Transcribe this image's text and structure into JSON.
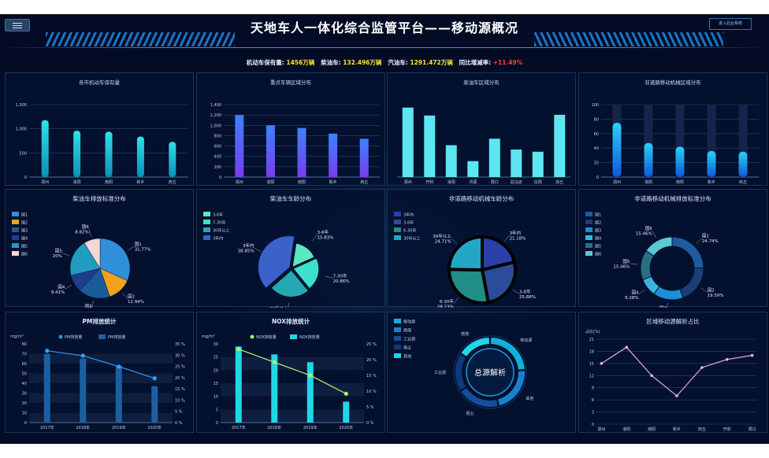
{
  "header": {
    "title": "天地车人一体化综合监管平台——移动源概况",
    "enter_label": "进入后台系统"
  },
  "stats": {
    "motor_label": "机动车保有量:",
    "motor_value": "1456万辆",
    "diesel_label": "柴油车:",
    "diesel_value": "132.496万辆",
    "gas_label": "汽油车:",
    "gas_value": "1291.472万辆",
    "growth_label": "同比增减率:",
    "growth_value": "+11.49%"
  },
  "colors": {
    "background": "#030c24",
    "accent": "#2d8ff0",
    "cyan": "#22c3d6",
    "yellow": "#f4e23a",
    "red": "#ff3d3d"
  },
  "chart_data": [
    {
      "id": "c1",
      "type": "bar",
      "title": "各市机动车保有量",
      "categories": [
        "郑州",
        "洛阳",
        "南阳",
        "新乡",
        "商丘"
      ],
      "values": [
        1180,
        960,
        940,
        840,
        730
      ],
      "ylim": [
        0,
        1500
      ],
      "yticks": [
        "0",
        "500",
        "1,000",
        "1,500"
      ],
      "color": "cyan-gradient"
    },
    {
      "id": "c2",
      "type": "bar",
      "title": "重点车辆区域分布",
      "categories": [
        "郑州",
        "洛阳",
        "南阳",
        "新乡",
        "商丘"
      ],
      "values": [
        1200,
        1000,
        950,
        840,
        740
      ],
      "ylim": [
        0,
        1400
      ],
      "yticks": [
        "0",
        "200",
        "400",
        "600",
        "800",
        "1,000",
        "1,200",
        "1,400"
      ],
      "color": "blue-purple-gradient"
    },
    {
      "id": "c3",
      "type": "bar",
      "title": "柴油车区域分布",
      "categories": [
        "郑州",
        "开封",
        "洛阳",
        "济源",
        "周口",
        "驻马店",
        "信阳",
        "商丘"
      ],
      "values": [
        96,
        85,
        44,
        22,
        53,
        38,
        35,
        86
      ],
      "ylim": [
        0,
        100
      ],
      "yticks": []
    },
    {
      "id": "c4",
      "type": "bar",
      "title": "非道路移动机械区域分布",
      "categories": [
        "郑州",
        "洛阳",
        "南阳",
        "新乡",
        "商丘"
      ],
      "values": [
        75,
        47,
        42,
        36,
        35
      ],
      "ylim": [
        0,
        100
      ],
      "yticks": [
        "0",
        "20",
        "40",
        "60",
        "80",
        "100"
      ]
    },
    {
      "id": "c5",
      "type": "pie",
      "title": "柴油车排放标准分布",
      "legend": [
        "国1",
        "国2",
        "国3",
        "国4",
        "国5",
        "国6"
      ],
      "slices": [
        {
          "name": "国1",
          "pct": 31.77
        },
        {
          "name": "国2",
          "pct": 12.94
        },
        {
          "name": "国3",
          "pct": 17.06
        },
        {
          "name": "国4",
          "pct": 9.41
        },
        {
          "name": "国5",
          "pct": 20.0
        },
        {
          "name": "国6",
          "pct": 8.82
        }
      ],
      "labels": [
        [
          "国1",
          "31.77%"
        ],
        [
          "国2",
          "12.94%"
        ],
        [
          "国3",
          "17.06%"
        ],
        [
          "国4",
          "9.41%"
        ],
        [
          "国5",
          "20%"
        ],
        [
          "国6",
          "8.82%"
        ]
      ]
    },
    {
      "id": "c6",
      "type": "pie",
      "title": "柴油车车龄分布",
      "legend": [
        "3-6年",
        "7-30年",
        "30年以上",
        "3年内"
      ],
      "slices": [
        {
          "name": "3-6年",
          "pct": 15.83
        },
        {
          "name": "7-30年",
          "pct": 20.86
        },
        {
          "name": "30年以上",
          "pct": 24.46
        },
        {
          "name": "3年内",
          "pct": 38.85
        }
      ],
      "labels": [
        [
          "3-6年",
          "15.83%"
        ],
        [
          "7-30年",
          "20.86%"
        ],
        [
          "30年以上",
          "24.46%"
        ],
        [
          "3年内",
          "38.85%"
        ]
      ]
    },
    {
      "id": "c7",
      "type": "pie",
      "title": "非道路移动机械车龄分布",
      "legend": [
        "3年内",
        "3-6年",
        "6-30年",
        "30年以上"
      ],
      "slices": [
        {
          "name": "3年内",
          "pct": 21.18
        },
        {
          "name": "3-6年",
          "pct": 25.88
        },
        {
          "name": "6-30年",
          "pct": 28.23
        },
        {
          "name": "30年以上",
          "pct": 24.71
        }
      ],
      "labels": [
        [
          "3年内",
          "21.18%"
        ],
        [
          "3-6年",
          "25.88%"
        ],
        [
          "6-30年",
          "28.23%"
        ],
        [
          "30年以上",
          "24.71%"
        ]
      ]
    },
    {
      "id": "c8",
      "type": "pie",
      "title": "非道路移动机械排放标准分布",
      "legend": [
        "国1",
        "国2",
        "国3",
        "国4",
        "国5",
        "国6"
      ],
      "slices": [
        {
          "name": "国1",
          "pct": 24.74
        },
        {
          "name": "国2",
          "pct": 19.59
        },
        {
          "name": "国3",
          "pct": 15.47
        },
        {
          "name": "国4",
          "pct": 9.28
        },
        {
          "name": "国5",
          "pct": 15.46
        },
        {
          "name": "国6",
          "pct": 15.46
        }
      ],
      "labels": [
        [
          "国1",
          "24.74%"
        ],
        [
          "国2",
          "19.59%"
        ],
        [
          "国3",
          "15.47%"
        ],
        [
          "国4",
          "9.28%"
        ],
        [
          "国5",
          "15.46%"
        ],
        [
          "国6",
          "15.46%"
        ]
      ]
    },
    {
      "id": "c9",
      "type": "bar",
      "title": "PM排放统计",
      "ylabel": "mg/m³",
      "legend": [
        "PM排放量",
        "PM排放量"
      ],
      "categories": [
        "2017年",
        "2018年",
        "2019年",
        "2020年"
      ],
      "values": [
        70,
        65,
        58,
        37
      ],
      "line": [
        73,
        68,
        57,
        45
      ],
      "ylim": [
        0,
        80
      ],
      "yticks": [
        "0",
        "10",
        "20",
        "30",
        "40",
        "50",
        "60",
        "70",
        "80"
      ],
      "rticks": [
        "0 %",
        "5 %",
        "10 %",
        "15 %",
        "20 %",
        "25 %",
        "30 %",
        "35 %"
      ]
    },
    {
      "id": "c10",
      "type": "bar",
      "title": "NOX排放统计",
      "ylabel": "mg/m³",
      "legend": [
        "NOX排放量",
        "NOX排放量"
      ],
      "categories": [
        "2017年",
        "2018年",
        "2019年",
        "2020年"
      ],
      "values": [
        29,
        26,
        23,
        8
      ],
      "line": [
        28,
        23,
        18,
        11
      ],
      "ylim": [
        0,
        30
      ],
      "yticks": [
        "0",
        "5",
        "10",
        "15",
        "20",
        "25",
        "30"
      ],
      "rticks": [
        "0 %",
        "5 %",
        "10 %",
        "15 %",
        "20 %",
        "25 %"
      ]
    },
    {
      "id": "c11",
      "type": "pie",
      "center_label": "总源解析",
      "legend": [
        "移动源",
        "燃煤",
        "工业源",
        "扬尘",
        "其他"
      ],
      "slices": [
        {
          "name": "移动源",
          "pct": 24
        },
        {
          "name": "其他",
          "pct": 22
        },
        {
          "name": "扬尘",
          "pct": 20
        },
        {
          "name": "工业源",
          "pct": 18
        },
        {
          "name": "燃煤",
          "pct": 16
        }
      ]
    },
    {
      "id": "c12",
      "type": "line",
      "title": "区域移动源解析占比",
      "ylabel": "占比(%)",
      "categories": [
        "郑州",
        "洛阳",
        "南阳",
        "新乡",
        "商丘",
        "开封",
        "周口"
      ],
      "values": [
        15,
        19,
        12,
        7,
        14,
        16,
        17
      ],
      "ylim": [
        0,
        21
      ],
      "yticks": [
        "0",
        "3",
        "6",
        "9",
        "12",
        "15",
        "18",
        "21"
      ]
    }
  ]
}
